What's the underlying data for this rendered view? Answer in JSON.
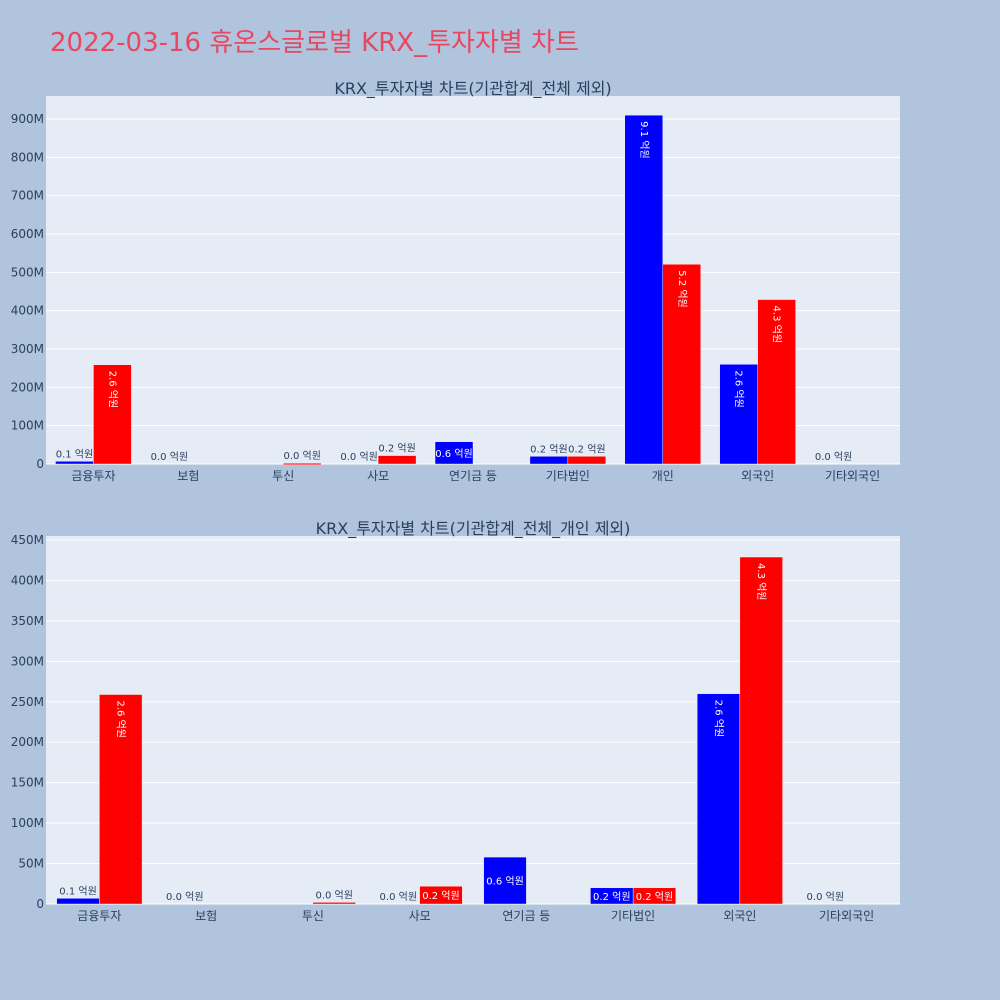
{
  "page": {
    "title": "2022-03-16 휴온스글로벌 KRX_투자자별 차트"
  },
  "colors": {
    "buy": "#0000ff",
    "sell": "#ff0000",
    "plot_bg": "#e5ecf6",
    "paper_bg": "#b0c4de",
    "grid": "#ffffff",
    "title": "#e8475f"
  },
  "chart_data": [
    {
      "type": "bar",
      "title": "KRX_투자자별 차트(기관합계_전체 제외)",
      "categories": [
        "금융투자",
        "보험",
        "투신",
        "사모",
        "연기금 등",
        "기타법인",
        "개인",
        "외국인",
        "기타외국인"
      ],
      "ylim": [
        0,
        960
      ],
      "yticks": [
        0,
        100,
        200,
        300,
        400,
        500,
        600,
        700,
        800,
        900
      ],
      "ytick_labels": [
        "0",
        "100M",
        "200M",
        "300M",
        "400M",
        "500M",
        "600M",
        "700M",
        "800M",
        "900M"
      ],
      "grid": true,
      "series": [
        {
          "values": [
            7,
            0,
            0,
            0,
            58,
            20,
            910,
            260,
            0
          ],
          "labels": [
            "0.1 억원",
            "0.0 억원",
            "",
            "0.0 억원",
            "0.6 억원",
            "0.2 억원",
            "9.1 억원",
            "2.6 억원",
            "0.0 억원"
          ]
        },
        {
          "values": [
            259,
            0,
            2,
            22,
            0,
            20,
            521,
            429,
            0
          ],
          "labels": [
            "2.6 억원",
            "",
            "0.0 억원",
            "0.2 억원",
            "",
            "0.2 억원",
            "5.2 억원",
            "4.3 억원",
            ""
          ]
        }
      ]
    },
    {
      "type": "bar",
      "title": "KRX_투자자별 차트(기관합계_전체_개인 제외)",
      "categories": [
        "금융투자",
        "보험",
        "투신",
        "사모",
        "연기금 등",
        "기타법인",
        "외국인",
        "기타외국인"
      ],
      "ylim": [
        0,
        455
      ],
      "yticks": [
        0,
        50,
        100,
        150,
        200,
        250,
        300,
        350,
        400,
        450
      ],
      "ytick_labels": [
        "0",
        "50M",
        "100M",
        "150M",
        "200M",
        "250M",
        "300M",
        "350M",
        "400M",
        "450M"
      ],
      "grid": true,
      "series": [
        {
          "values": [
            7,
            0,
            0,
            0,
            58,
            20,
            260,
            0
          ],
          "labels": [
            "0.1 억원",
            "0.0 억원",
            "",
            "0.0 억원",
            "0.6 억원",
            "0.2 억원",
            "2.6 억원",
            "0.0 억원"
          ]
        },
        {
          "values": [
            259,
            0,
            2,
            22,
            0,
            20,
            429,
            0
          ],
          "labels": [
            "2.6 억원",
            "",
            "0.0 억원",
            "0.2 억원",
            "",
            "0.2 억원",
            "4.3 억원",
            ""
          ]
        }
      ]
    }
  ]
}
